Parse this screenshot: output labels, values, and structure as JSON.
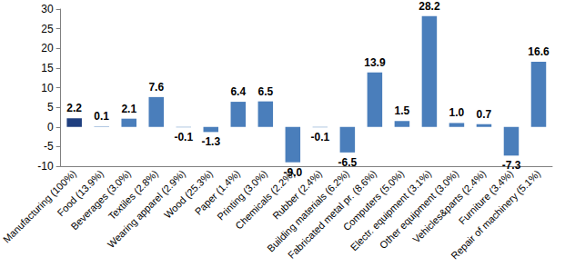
{
  "chart_data": {
    "type": "bar",
    "categories": [
      "Manufacturing (100%)",
      "Food (13.9%)",
      "Beverages (3.0%)",
      "Textiles (2.8%)",
      "Wearing apparel (2.9%)",
      "Wood (25.3%)",
      "Paper (1.4%)",
      "Printing (3.0%)",
      "Chemicals (2.2%)",
      "Rubber (2.4%)",
      "Building materials (6.2%)",
      "Fabricated metal pr. (8.6%)",
      "Computers (5.0%)",
      "Electr. equipment (3.1%)",
      "Other equipment (3.0%)",
      "Vehicles&parts (2.4%)",
      "Furniture (3.4%)",
      "Repair of machinery (5.1%)"
    ],
    "values": [
      2.2,
      0.1,
      2.1,
      7.6,
      -0.1,
      -1.3,
      6.4,
      6.5,
      -9.0,
      -0.1,
      -6.5,
      13.9,
      1.5,
      28.2,
      1.0,
      0.7,
      -7.3,
      16.6
    ],
    "value_labels": [
      "2.2",
      "0.1",
      "2.1",
      "7.6",
      "-0.1",
      "-1.3",
      "6.4",
      "6.5",
      "-9.0",
      "-0.1",
      "-6.5",
      "13.9",
      "1.5",
      "28.2",
      "1.0",
      "0.7",
      "-7.3",
      "16.6"
    ],
    "colors": [
      "#1f3f7f",
      "#4a7ebb",
      "#4a7ebb",
      "#4a7ebb",
      "#4a7ebb",
      "#4a7ebb",
      "#4a7ebb",
      "#4a7ebb",
      "#4a7ebb",
      "#4a7ebb",
      "#4a7ebb",
      "#4a7ebb",
      "#4a7ebb",
      "#4a7ebb",
      "#4a7ebb",
      "#4a7ebb",
      "#4a7ebb",
      "#4a7ebb"
    ],
    "ylim": [
      -10,
      30
    ],
    "yticks": [
      -10,
      -5,
      0,
      5,
      10,
      15,
      20,
      25,
      30
    ],
    "grid": false,
    "data_labels": true
  }
}
